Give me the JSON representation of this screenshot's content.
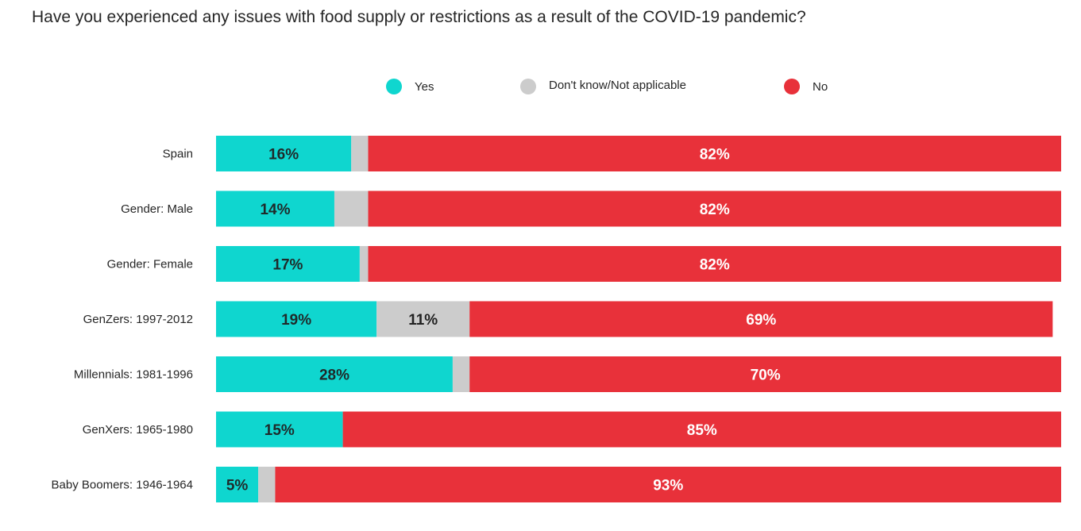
{
  "chart_data": {
    "type": "bar",
    "orientation": "horizontal",
    "stacked": true,
    "title": "Have you experienced any issues with food supply or restrictions as a result of the COVID-19 pandemic?",
    "categories": [
      "Spain",
      "Gender: Male",
      "Gender: Female",
      "GenZers: 1997-2012",
      "Millennials: 1981-1996",
      "GenXers: 1965-1980",
      "Baby Boomers: 1946-1964"
    ],
    "series": [
      {
        "name": "Yes",
        "color": "#0fd6cf",
        "values": [
          16,
          14,
          17,
          19,
          28,
          15,
          5
        ],
        "labels": [
          "16%",
          "14%",
          "17%",
          "19%",
          "28%",
          "15%",
          "5%"
        ],
        "label_color": "#1f2a2a"
      },
      {
        "name": "Don't know/Not applicable",
        "color": "#cccccc",
        "values": [
          2,
          4,
          1,
          11,
          2,
          0,
          2
        ],
        "labels": [
          "",
          "",
          "",
          "11%",
          "",
          "",
          ""
        ],
        "label_color": "#222222"
      },
      {
        "name": "No",
        "color": "#e8313a",
        "values": [
          82,
          82,
          82,
          69,
          70,
          85,
          93
        ],
        "labels": [
          "82%",
          "82%",
          "82%",
          "69%",
          "70%",
          "85%",
          "93%"
        ],
        "label_color": "#ffffff"
      }
    ],
    "xlim": [
      0,
      100
    ],
    "grid": false,
    "legend_position": "top"
  }
}
